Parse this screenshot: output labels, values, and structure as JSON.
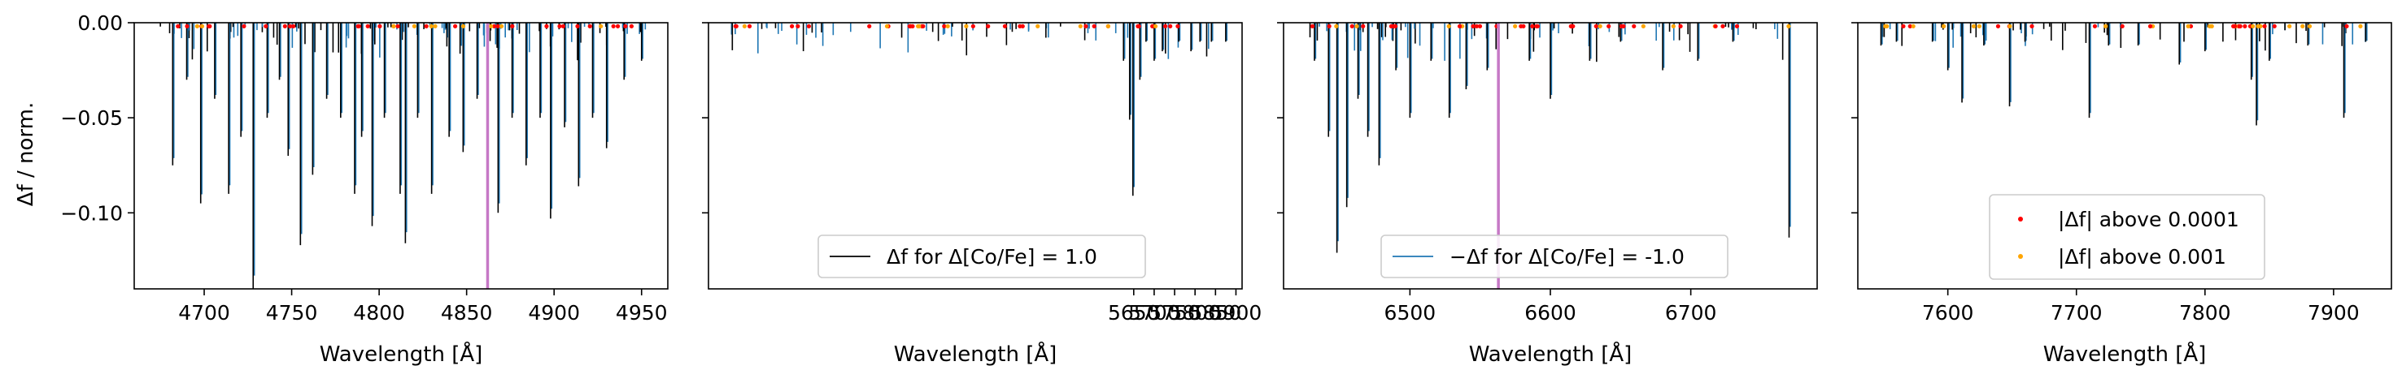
{
  "figure": {
    "ylabel": "Δf / norm.",
    "xlabel": "Wavelength [Å]",
    "colors": {
      "positive": "#000000",
      "negative": "#1f77b4",
      "above_1e4": "#ff0000",
      "above_1e3": "#ffa500",
      "marker_line": "#c678c6"
    }
  },
  "legends": {
    "positive": "Δf for Δ[Co/Fe] = 1.0",
    "negative": "−Δf for Δ[Co/Fe] = -1.0",
    "red_dots": "|Δf| above 0.0001",
    "orange_dots": "|Δf| above 0.001"
  },
  "chart_data": [
    {
      "type": "line",
      "xlabel": "Wavelength [Å]",
      "ylabel": "Δf / norm.",
      "xlim": [
        4660,
        4965
      ],
      "ylim": [
        -0.14,
        0.0
      ],
      "xticks": [
        4700,
        4750,
        4800,
        4850,
        4900,
        4950
      ],
      "xtick_labels": [
        "4700",
        "4750",
        "4800",
        "4850",
        "4900",
        "4950"
      ],
      "yticks": [
        0.0,
        -0.05,
        -0.1
      ],
      "ytick_labels": [
        "0.00",
        "−0.05",
        "−0.10"
      ],
      "vline": 4862,
      "legend": null,
      "lines": [
        [
          4682,
          -0.075
        ],
        [
          4690,
          -0.03
        ],
        [
          4698,
          -0.095
        ],
        [
          4706,
          -0.04
        ],
        [
          4714,
          -0.09
        ],
        [
          4721,
          -0.06
        ],
        [
          4728,
          -0.14
        ],
        [
          4736,
          -0.05
        ],
        [
          4743,
          -0.03
        ],
        [
          4748,
          -0.07
        ],
        [
          4755,
          -0.117
        ],
        [
          4762,
          -0.08
        ],
        [
          4770,
          -0.04
        ],
        [
          4778,
          -0.05
        ],
        [
          4786,
          -0.09
        ],
        [
          4790,
          -0.06
        ],
        [
          4796,
          -0.107
        ],
        [
          4803,
          -0.05
        ],
        [
          4812,
          -0.09
        ],
        [
          4815,
          -0.116
        ],
        [
          4822,
          -0.05
        ],
        [
          4830,
          -0.09
        ],
        [
          4840,
          -0.06
        ],
        [
          4848,
          -0.068
        ],
        [
          4856,
          -0.04
        ],
        [
          4868,
          -0.1
        ],
        [
          4876,
          -0.05
        ],
        [
          4884,
          -0.075
        ],
        [
          4892,
          -0.05
        ],
        [
          4898,
          -0.103
        ],
        [
          4906,
          -0.055
        ],
        [
          4914,
          -0.086
        ],
        [
          4922,
          -0.05
        ],
        [
          4930,
          -0.066
        ],
        [
          4940,
          -0.03
        ],
        [
          4950,
          -0.02
        ]
      ]
    },
    {
      "type": "line",
      "xlabel": "Wavelength [Å]",
      "xlim": [
        4610,
        5915
      ],
      "ylim": [
        -0.14,
        0.0
      ],
      "xticks": [
        5650,
        5700,
        5750,
        5800,
        5850,
        5900
      ],
      "xtick_labels": [
        "5650",
        "5700",
        "5750",
        "5800",
        "5850",
        "5900"
      ],
      "yticks": [
        0.0,
        -0.05,
        -0.1
      ],
      "legend": "positive",
      "lines": [
        [
          5625,
          -0.02
        ],
        [
          5640,
          -0.051
        ],
        [
          5648,
          -0.091
        ],
        [
          5665,
          -0.03
        ],
        [
          5680,
          -0.01
        ],
        [
          5700,
          -0.02
        ],
        [
          5720,
          -0.015
        ],
        [
          5760,
          -0.01
        ],
        [
          5790,
          -0.015
        ],
        [
          5812,
          -0.01
        ],
        [
          5840,
          -0.01
        ],
        [
          5875,
          -0.01
        ]
      ]
    },
    {
      "type": "line",
      "xlabel": "Wavelength [Å]",
      "xlim": [
        6410,
        6790
      ],
      "ylim": [
        -0.14,
        0.0
      ],
      "xticks": [
        6500,
        6600,
        6700
      ],
      "xtick_labels": [
        "6500",
        "6600",
        "6700"
      ],
      "yticks": [
        0.0,
        -0.05,
        -0.1
      ],
      "vline": 6563,
      "legend": "negative",
      "lines": [
        [
          6432,
          -0.02
        ],
        [
          6442,
          -0.06
        ],
        [
          6448,
          -0.121
        ],
        [
          6455,
          -0.097
        ],
        [
          6463,
          -0.04
        ],
        [
          6470,
          -0.06
        ],
        [
          6478,
          -0.075
        ],
        [
          6490,
          -0.025
        ],
        [
          6500,
          -0.05
        ],
        [
          6515,
          -0.02
        ],
        [
          6528,
          -0.05
        ],
        [
          6540,
          -0.035
        ],
        [
          6555,
          -0.025
        ],
        [
          6585,
          -0.02
        ],
        [
          6600,
          -0.04
        ],
        [
          6628,
          -0.02
        ],
        [
          6650,
          -0.01
        ],
        [
          6680,
          -0.025
        ],
        [
          6705,
          -0.02
        ],
        [
          6730,
          -0.01
        ],
        [
          6770,
          -0.113
        ]
      ]
    },
    {
      "type": "line",
      "xlabel": "Wavelength [Å]",
      "xlim": [
        7530,
        7945
      ],
      "ylim": [
        -0.14,
        0.0
      ],
      "xticks": [
        7600,
        7700,
        7800,
        7900
      ],
      "xtick_labels": [
        "7600",
        "7700",
        "7800",
        "7900"
      ],
      "yticks": [
        0.0,
        -0.05,
        -0.1
      ],
      "legend": "dots",
      "lines": [
        [
          7548,
          -0.012
        ],
        [
          7560,
          -0.01
        ],
        [
          7588,
          -0.01
        ],
        [
          7600,
          -0.025
        ],
        [
          7611,
          -0.042
        ],
        [
          7628,
          -0.012
        ],
        [
          7648,
          -0.044
        ],
        [
          7660,
          -0.01
        ],
        [
          7710,
          -0.05
        ],
        [
          7725,
          -0.012
        ],
        [
          7748,
          -0.012
        ],
        [
          7780,
          -0.022
        ],
        [
          7800,
          -0.015
        ],
        [
          7836,
          -0.03
        ],
        [
          7840,
          -0.054
        ],
        [
          7850,
          -0.02
        ],
        [
          7880,
          -0.012
        ],
        [
          7908,
          -0.05
        ],
        [
          7925,
          -0.01
        ]
      ]
    }
  ]
}
